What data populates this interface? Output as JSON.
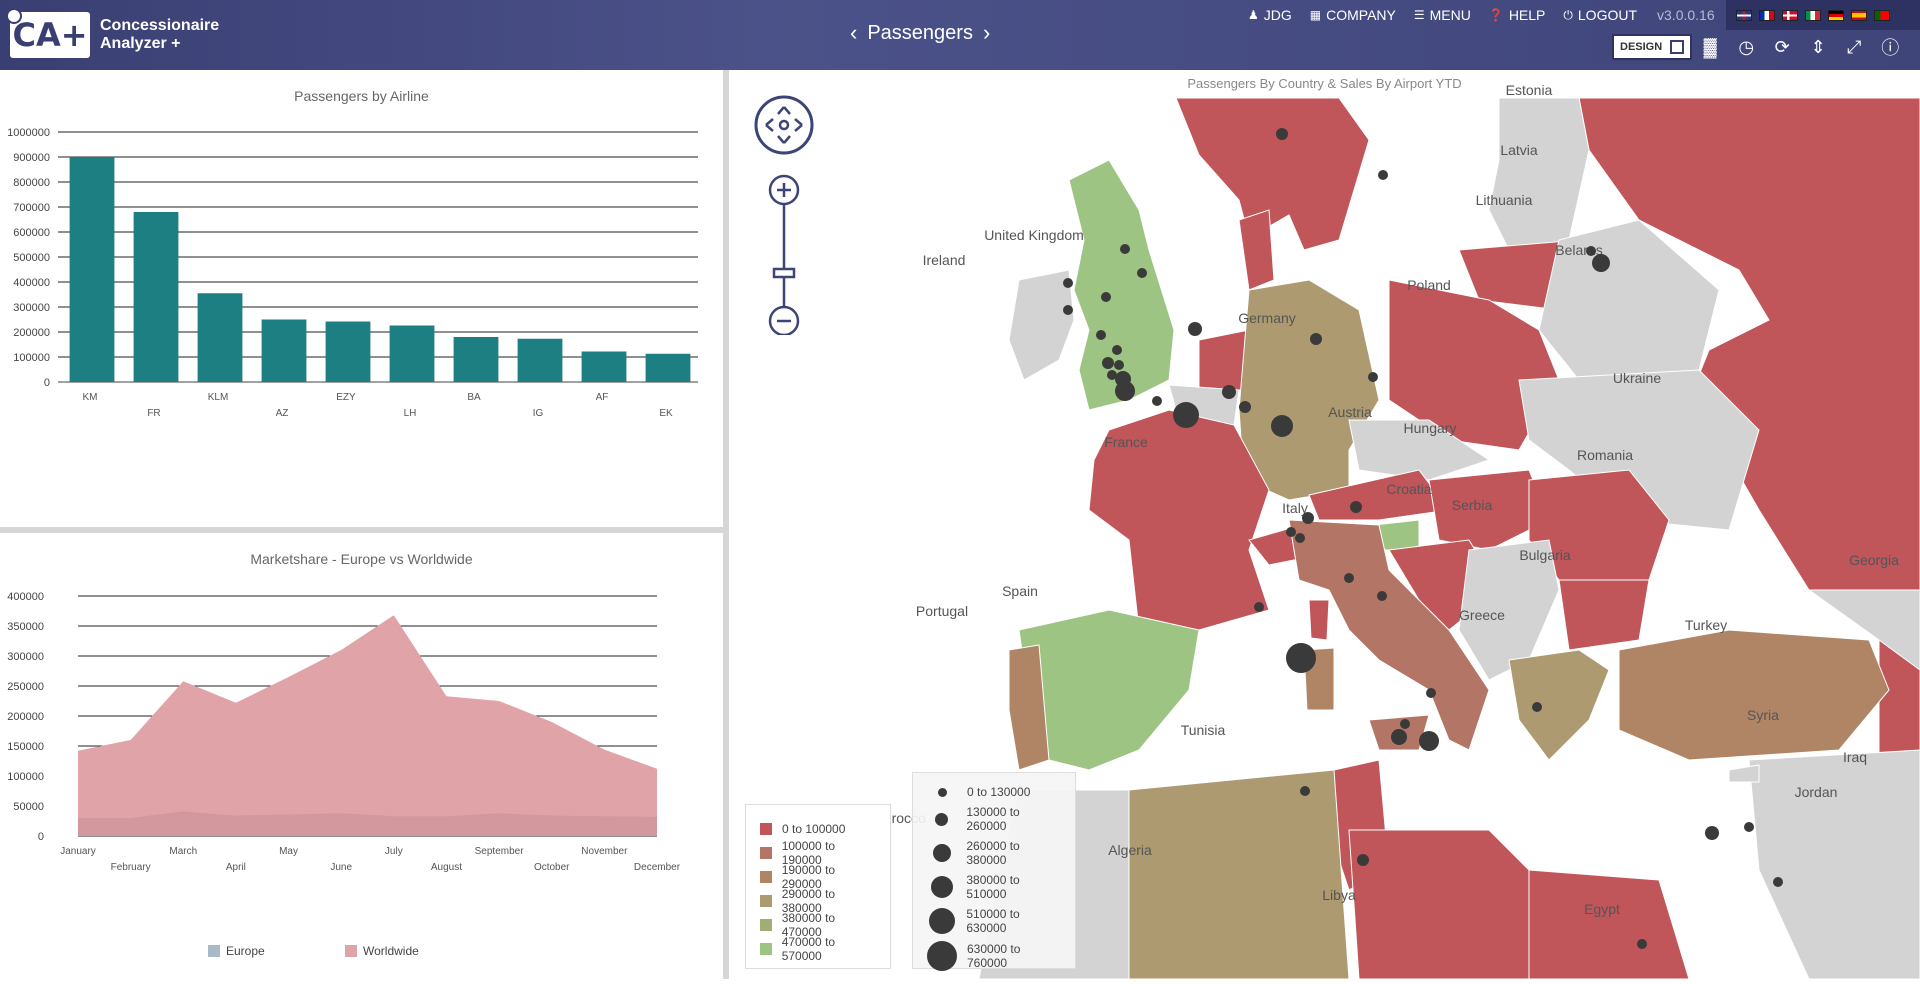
{
  "app": {
    "logo_text": "CA+",
    "name_line1": "Concessionaire",
    "name_line2": "Analyzer +"
  },
  "page": {
    "title": "Passengers"
  },
  "nav": {
    "user": "JDG",
    "company": "COMPANY",
    "menu": "MENU",
    "help": "HELP",
    "logout": "LOGOUT",
    "version": "v3.0.0.16"
  },
  "toolbar": {
    "design_label": "DESIGN"
  },
  "flags": [
    "gb",
    "fr",
    "dk",
    "it",
    "de",
    "es",
    "pt"
  ],
  "icons": [
    "user-icon",
    "company-icon",
    "menu-icon",
    "help-icon",
    "logout-icon",
    "bar-chart-icon",
    "clock-icon",
    "refresh-icon",
    "compress-icon",
    "fullscreen-icon",
    "info-icon"
  ],
  "bar_panel": {
    "chart_data": {
      "type": "bar",
      "title": "Passengers by Airline",
      "categories": [
        "KM",
        "FR",
        "KLM",
        "AZ",
        "EZY",
        "LH",
        "BA",
        "IG",
        "AF",
        "EK"
      ],
      "values": [
        900000,
        680000,
        355000,
        250000,
        242000,
        226000,
        180000,
        173000,
        122000,
        113000
      ],
      "ylim": [
        0,
        1000000
      ],
      "yticks": [
        "0",
        "100000",
        "200000",
        "300000",
        "400000",
        "500000",
        "600000",
        "700000",
        "800000",
        "900000",
        "1000000"
      ],
      "color": "#1e7f82"
    }
  },
  "area_panel": {
    "chart_data": {
      "type": "area",
      "title": "Marketshare - Europe vs Worldwide",
      "categories": [
        "January",
        "February",
        "March",
        "April",
        "May",
        "June",
        "July",
        "August",
        "September",
        "October",
        "November",
        "December"
      ],
      "series": [
        {
          "name": "Europe",
          "values": [
            30000,
            30000,
            41000,
            34000,
            36000,
            38000,
            33000,
            33000,
            38000,
            34000,
            33000,
            32000
          ],
          "color": "#a9b9c8"
        },
        {
          "name": "Worldwide",
          "values": [
            142000,
            160000,
            258000,
            222000,
            265000,
            310000,
            368000,
            233000,
            225000,
            190000,
            144000,
            112000
          ],
          "color": "#dfa3a8"
        }
      ],
      "ylim": [
        0,
        400000
      ],
      "yticks": [
        "0",
        "50000",
        "100000",
        "150000",
        "200000",
        "250000",
        "300000",
        "350000",
        "400000"
      ],
      "legend": "bottom"
    }
  },
  "map_panel": {
    "title": "Passengers By Country & Sales By Airport YTD",
    "countries": [
      "Estonia",
      "Latvia",
      "Lithuania",
      "Belarus",
      "Poland",
      "United Kingdom",
      "Ireland",
      "Germany",
      "Ukraine",
      "France",
      "Austria",
      "Hungary",
      "Romania",
      "Croatia",
      "Serbia",
      "Italy",
      "Bulgaria",
      "Georgia",
      "Spain",
      "Portugal",
      "Greece",
      "Turkey",
      "Syria",
      "Iraq",
      "Tunisia",
      "Jordan",
      "Morocco",
      "Algeria",
      "Libya",
      "Egypt"
    ],
    "choropleth_legend": [
      {
        "label": "0 to 100000",
        "color": "#c0555a"
      },
      {
        "label": "100000 to 190000",
        "color": "#b37565"
      },
      {
        "label": "190000 to 290000",
        "color": "#b08566"
      },
      {
        "label": "290000 to 380000",
        "color": "#ad9a70"
      },
      {
        "label": "380000 to 470000",
        "color": "#9fae73"
      },
      {
        "label": "470000 to 570000",
        "color": "#9dc483"
      }
    ],
    "bubble_legend": [
      {
        "label": "0 to 130000",
        "size": 9
      },
      {
        "label": "130000 to 260000",
        "size": 13
      },
      {
        "label": "260000 to 380000",
        "size": 18
      },
      {
        "label": "380000 to 510000",
        "size": 22
      },
      {
        "label": "510000 to 630000",
        "size": 26
      },
      {
        "label": "630000 to 760000",
        "size": 30
      }
    ]
  }
}
